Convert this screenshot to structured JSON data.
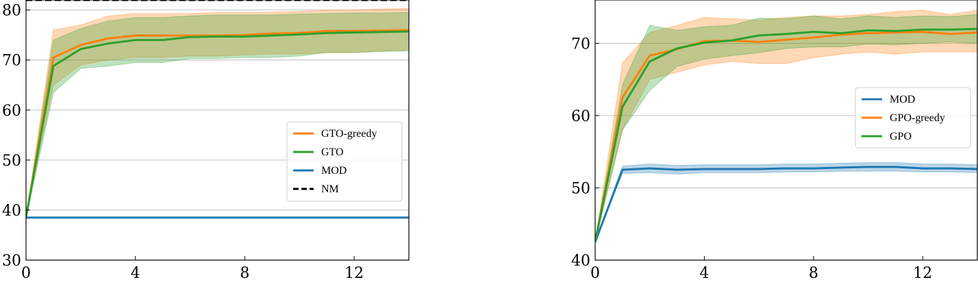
{
  "chart_data": [
    {
      "type": "line",
      "title": "",
      "xlabel": "",
      "ylabel": "",
      "xlim": [
        0,
        14
      ],
      "ylim": [
        30,
        82
      ],
      "xticks": [
        0,
        4,
        8,
        12
      ],
      "yticks": [
        30,
        40,
        50,
        60,
        70,
        80
      ],
      "grid": "horizontal",
      "legend_placement": "center-right",
      "legend_order": [
        "GTO-greedy",
        "GTO",
        "MOD",
        "NM"
      ],
      "series": [
        {
          "name": "GTO-greedy",
          "color": "#ff7f0e",
          "x": [
            0,
            1,
            2,
            3,
            4,
            5,
            6,
            7,
            8,
            9,
            10,
            11,
            12,
            13,
            14
          ],
          "y": [
            38.5,
            70.5,
            73.0,
            74.3,
            74.9,
            74.9,
            74.9,
            74.9,
            75.0,
            75.3,
            75.4,
            75.8,
            75.8,
            75.9,
            76.0
          ],
          "lower": [
            38.5,
            65.0,
            69.0,
            70.0,
            70.5,
            70.5,
            70.8,
            70.8,
            71.0,
            71.2,
            71.2,
            71.5,
            71.5,
            71.8,
            72.0
          ],
          "upper": [
            38.5,
            76.0,
            77.0,
            78.8,
            79.3,
            79.3,
            79.3,
            79.5,
            79.5,
            79.6,
            79.7,
            80.0,
            80.0,
            80.2,
            80.3
          ]
        },
        {
          "name": "GTO",
          "color": "#2ca02c",
          "x": [
            0,
            1,
            2,
            3,
            4,
            5,
            6,
            7,
            8,
            9,
            10,
            11,
            12,
            13,
            14
          ],
          "y": [
            38.5,
            68.8,
            72.2,
            73.3,
            74.0,
            74.0,
            74.6,
            74.7,
            74.7,
            74.9,
            75.1,
            75.4,
            75.5,
            75.6,
            75.7
          ],
          "lower": [
            38.5,
            63.5,
            68.3,
            68.8,
            69.5,
            69.5,
            70.3,
            70.3,
            70.5,
            70.5,
            70.8,
            71.5,
            71.5,
            71.7,
            71.8
          ],
          "upper": [
            38.5,
            74.0,
            76.3,
            77.8,
            78.5,
            78.5,
            78.8,
            79.0,
            79.0,
            79.0,
            79.2,
            79.3,
            79.4,
            79.4,
            79.5
          ]
        },
        {
          "name": "MOD",
          "color": "#1f77b4",
          "x": [
            0,
            14
          ],
          "y": [
            38.5,
            38.5
          ]
        },
        {
          "name": "NM",
          "color": "#000000",
          "style": "dashed",
          "x": [
            0,
            14
          ],
          "y": [
            82.0,
            82.0
          ]
        }
      ]
    },
    {
      "type": "line",
      "title": "",
      "xlabel": "",
      "ylabel": "",
      "xlim": [
        0,
        14
      ],
      "ylim": [
        40,
        76
      ],
      "xticks": [
        0,
        4,
        8,
        12
      ],
      "yticks": [
        40,
        50,
        60,
        70
      ],
      "grid": "horizontal",
      "legend_placement": "center-right",
      "legend_order": [
        "MOD",
        "GPO-greedy",
        "GPO"
      ],
      "series": [
        {
          "name": "MOD",
          "color": "#1f77b4",
          "x": [
            0,
            1,
            2,
            3,
            4,
            5,
            6,
            7,
            8,
            9,
            10,
            11,
            12,
            13,
            14
          ],
          "y": [
            42.5,
            52.5,
            52.7,
            52.5,
            52.6,
            52.6,
            52.6,
            52.7,
            52.7,
            52.8,
            52.9,
            52.9,
            52.7,
            52.7,
            52.6
          ],
          "lower": [
            42.5,
            52.0,
            52.1,
            51.9,
            52.1,
            52.1,
            52.1,
            52.2,
            52.2,
            52.3,
            52.3,
            52.3,
            52.2,
            52.2,
            52.1
          ],
          "upper": [
            42.5,
            53.0,
            53.3,
            53.1,
            53.2,
            53.2,
            53.2,
            53.3,
            53.3,
            53.4,
            53.5,
            53.5,
            53.3,
            53.3,
            53.2
          ]
        },
        {
          "name": "GPO-greedy",
          "color": "#ff7f0e",
          "x": [
            0,
            1,
            2,
            3,
            4,
            5,
            6,
            7,
            8,
            9,
            10,
            11,
            12,
            13,
            14
          ],
          "y": [
            42.5,
            62.5,
            68.3,
            69.2,
            70.3,
            70.4,
            70.2,
            70.5,
            70.8,
            71.2,
            71.4,
            71.5,
            71.6,
            71.3,
            71.5
          ],
          "lower": [
            42.5,
            58.0,
            65.0,
            66.0,
            67.0,
            67.5,
            67.2,
            67.2,
            68.0,
            68.5,
            68.8,
            68.5,
            68.8,
            68.8,
            68.8
          ],
          "upper": [
            42.5,
            67.3,
            71.5,
            72.5,
            73.6,
            73.4,
            73.2,
            73.6,
            73.8,
            73.8,
            74.0,
            74.4,
            74.6,
            74.0,
            74.6
          ]
        },
        {
          "name": "GPO",
          "color": "#2ca02c",
          "x": [
            0,
            1,
            2,
            3,
            4,
            5,
            6,
            7,
            8,
            9,
            10,
            11,
            12,
            13,
            14
          ],
          "y": [
            42.5,
            61.2,
            67.5,
            69.3,
            70.1,
            70.4,
            71.1,
            71.3,
            71.6,
            71.4,
            71.8,
            71.7,
            71.9,
            71.9,
            72.0
          ],
          "lower": [
            42.5,
            58.0,
            63.5,
            66.8,
            67.8,
            68.3,
            68.7,
            69.3,
            69.5,
            69.5,
            69.9,
            69.8,
            70.0,
            70.2,
            70.0
          ],
          "upper": [
            42.5,
            64.3,
            72.5,
            71.8,
            72.3,
            72.5,
            73.5,
            73.4,
            73.8,
            73.4,
            73.8,
            73.6,
            73.8,
            73.7,
            74.0
          ]
        }
      ]
    }
  ]
}
